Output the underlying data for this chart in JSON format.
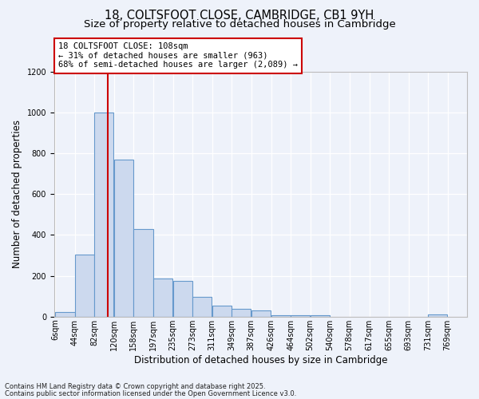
{
  "title": "18, COLTSFOOT CLOSE, CAMBRIDGE, CB1 9YH",
  "subtitle": "Size of property relative to detached houses in Cambridge",
  "xlabel": "Distribution of detached houses by size in Cambridge",
  "ylabel": "Number of detached properties",
  "footnote1": "Contains HM Land Registry data © Crown copyright and database right 2025.",
  "footnote2": "Contains public sector information licensed under the Open Government Licence v3.0.",
  "annotation_line0": "18 COLTSFOOT CLOSE: 108sqm",
  "annotation_line1": "← 31% of detached houses are smaller (963)",
  "annotation_line2": "68% of semi-detached houses are larger (2,089) →",
  "property_sqm": 108,
  "bar_edges": [
    6,
    44,
    82,
    120,
    158,
    197,
    235,
    273,
    311,
    349,
    387,
    426,
    464,
    502,
    540,
    578,
    617,
    655,
    693,
    731,
    769
  ],
  "bar_heights": [
    22,
    305,
    1000,
    770,
    430,
    185,
    175,
    95,
    55,
    40,
    30,
    8,
    8,
    7,
    0,
    0,
    0,
    0,
    0,
    10,
    0
  ],
  "bar_color": "#ccd9ee",
  "bar_edge_color": "#6699cc",
  "red_line_color": "#cc0000",
  "background_color": "#eef2fa",
  "annotation_box_color": "#ffffff",
  "annotation_box_edge": "#cc0000",
  "ylim": [
    0,
    1200
  ],
  "yticks": [
    0,
    200,
    400,
    600,
    800,
    1000,
    1200
  ],
  "title_fontsize": 10.5,
  "subtitle_fontsize": 9.5,
  "axis_label_fontsize": 8.5,
  "tick_fontsize": 7,
  "annotation_fontsize": 7.5
}
